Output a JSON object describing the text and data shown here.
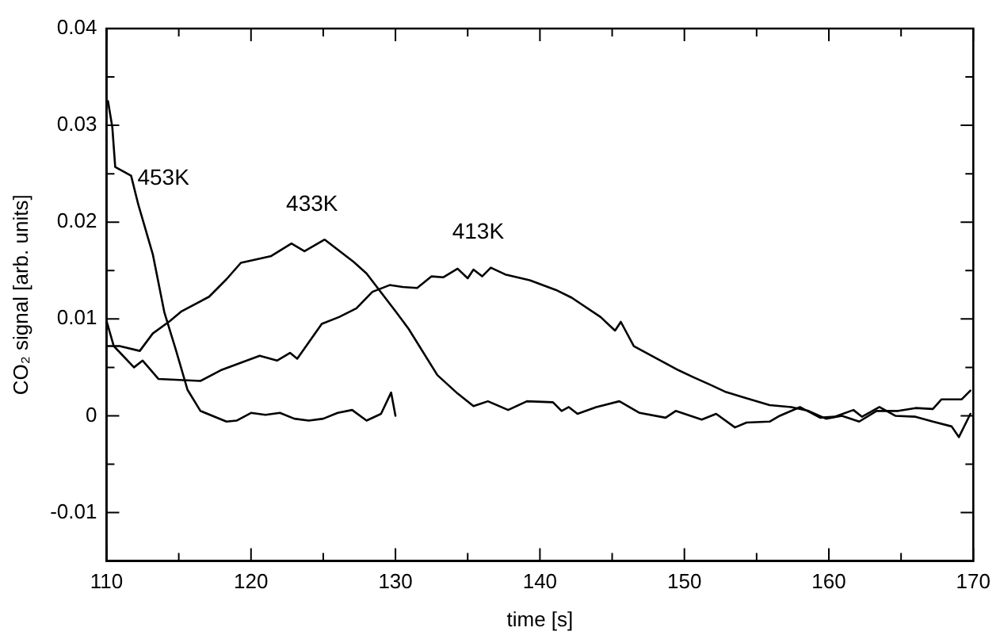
{
  "chart_data": {
    "type": "line",
    "xlabel": "time [s]",
    "ylabel": "CO₂ signal [arb. units]",
    "xlim": [
      110,
      170
    ],
    "xticks": [
      110,
      {
        "value": 115,
        "label": null
      },
      120,
      {
        "value": 125,
        "label": null
      },
      130,
      {
        "value": 135,
        "label": null
      },
      140,
      {
        "value": 145,
        "label": null
      },
      150,
      {
        "value": 155,
        "label": null
      },
      160,
      {
        "value": 165,
        "label": null
      },
      170
    ],
    "ylim": [
      -0.015,
      0.04
    ],
    "yticks": [
      {
        "value": -0.015,
        "label": null
      },
      -0.01,
      {
        "value": -0.005,
        "label": null
      },
      0,
      {
        "value": 0.005,
        "label": null
      },
      0.01,
      {
        "value": 0.015,
        "label": null
      },
      0.02,
      {
        "value": 0.025,
        "label": null
      },
      0.03,
      {
        "value": 0.035,
        "label": null
      },
      0.04
    ],
    "grid": false,
    "legend": false,
    "marker": "none",
    "line_style": "solid",
    "series": [
      {
        "name": "453K",
        "color": "#000000",
        "x": [
          110.1,
          110.4,
          110.6,
          111.7,
          112.2,
          113.2,
          114.0,
          114.8,
          115.6,
          116.5,
          118.3,
          119,
          120,
          121,
          122,
          123,
          124,
          125,
          126,
          127,
          128,
          129,
          129.7,
          130
        ],
        "values": [
          0.0325,
          0.0298,
          0.0257,
          0.0248,
          0.0218,
          0.0167,
          0.0107,
          0.0068,
          0.0027,
          0.0005,
          -0.0006,
          -0.0005,
          0.0003,
          0.0001,
          0.0003,
          -0.0003,
          -0.0005,
          -0.0003,
          0.0003,
          0.0006,
          -0.0005,
          0.0002,
          0.0024,
          0.0
        ]
      },
      {
        "name": "433K",
        "color": "#000000",
        "x": [
          110,
          110.9,
          112.3,
          113.2,
          114.4,
          115.2,
          117.1,
          118.3,
          119.3,
          121.4,
          122.8,
          123.7,
          125.1,
          127.1,
          128,
          130,
          130.9,
          132.9,
          134.3,
          135.4,
          136.4,
          137.8,
          139.1,
          140.9,
          141.5,
          142,
          142.6,
          143.9,
          145.5,
          146.9,
          148.7,
          149.4,
          151.2,
          152.2,
          153.5,
          154.3,
          155.9,
          156.6,
          158,
          159.4,
          160.4,
          161.7,
          162.3,
          163.5,
          164.6,
          166,
          167.2,
          168.5,
          169,
          169.8
        ],
        "values": [
          0.0072,
          0.0072,
          0.0067,
          0.0085,
          0.0098,
          0.0108,
          0.0123,
          0.0141,
          0.0158,
          0.0165,
          0.0178,
          0.017,
          0.0182,
          0.0159,
          0.0147,
          0.0108,
          0.009,
          0.0042,
          0.0023,
          0.001,
          0.0015,
          0.0006,
          0.0015,
          0.0014,
          0.0005,
          0.0009,
          0.0002,
          0.0009,
          0.0015,
          0.0003,
          -0.0002,
          0.0005,
          -0.0004,
          0.0002,
          -0.0012,
          -0.0007,
          -0.0006,
          0,
          0.0009,
          -0.0002,
          -0.0001,
          0.0006,
          -0.0001,
          0.0009,
          0,
          -0.0001,
          -0.0006,
          -0.0011,
          -0.0022,
          0.0002
        ]
      },
      {
        "name": "413K",
        "color": "#000000",
        "x": [
          110,
          110.5,
          111.9,
          112.5,
          113.6,
          116.5,
          117.9,
          120.6,
          121.8,
          122.7,
          123.2,
          124.9,
          126.1,
          127.3,
          128.4,
          129.6,
          130.5,
          131.5,
          132.5,
          133.3,
          134.3,
          135,
          135.4,
          136,
          136.6,
          137.6,
          139.3,
          141.1,
          142.2,
          144.2,
          145.2,
          145.6,
          146.5,
          148.1,
          149.6,
          150.6,
          151.8,
          152.8,
          154.1,
          155.9,
          157.4,
          158.6,
          159.8,
          160.9,
          162.1,
          163.3,
          164.8,
          166,
          167.2,
          167.8,
          169.2,
          169.8
        ],
        "values": [
          0.0098,
          0.0072,
          0.005,
          0.0057,
          0.0038,
          0.0036,
          0.0047,
          0.0062,
          0.0057,
          0.0065,
          0.0059,
          0.0095,
          0.0102,
          0.0111,
          0.0128,
          0.0135,
          0.0133,
          0.0132,
          0.0144,
          0.0143,
          0.0152,
          0.0142,
          0.0151,
          0.0144,
          0.0153,
          0.0146,
          0.014,
          0.013,
          0.0122,
          0.0102,
          0.0088,
          0.0097,
          0.0072,
          0.0059,
          0.0047,
          0.004,
          0.0032,
          0.0025,
          0.0019,
          0.0011,
          0.0009,
          0.0005,
          -0.0003,
          0,
          -0.0006,
          0.0005,
          0.0005,
          0.0008,
          0.0007,
          0.0017,
          0.0017,
          0.0026
        ]
      }
    ]
  }
}
